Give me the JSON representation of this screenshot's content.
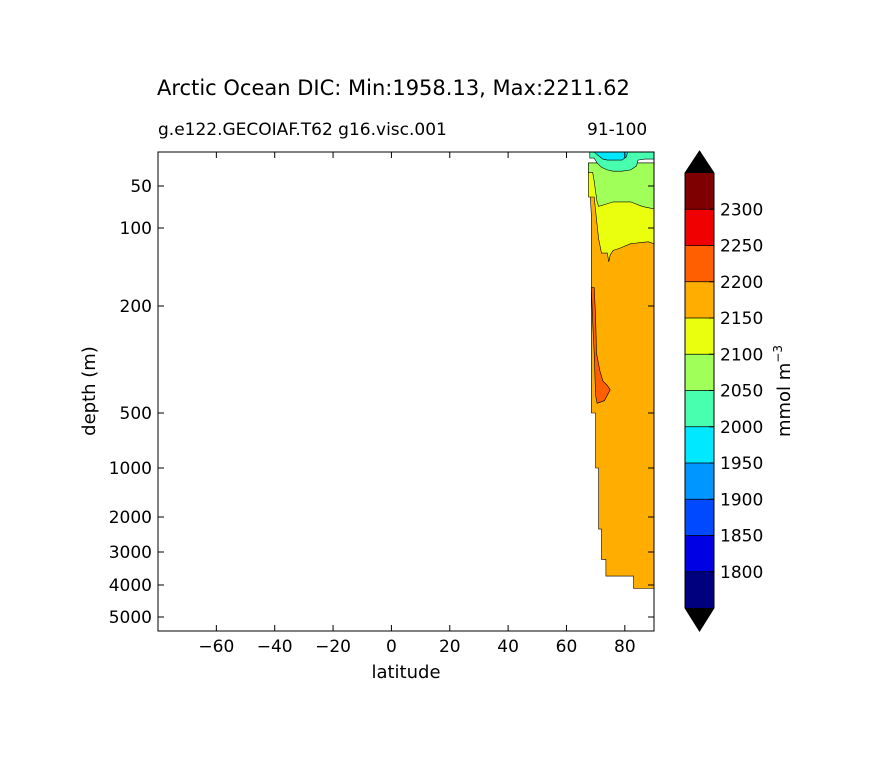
{
  "chart_data": {
    "type": "contour",
    "title": "Arctic Ocean DIC: Min:1958.13, Max:2211.62",
    "subtitle_left": "g.e122.GECOIAF.T62 g16.visc.001",
    "subtitle_right": "91-100",
    "xlabel": "latitude",
    "ylabel": "depth (m)",
    "xlim": [
      -80,
      90
    ],
    "ylim": [
      5500,
      20
    ],
    "x_ticks": [
      -60,
      -40,
      -20,
      0,
      20,
      40,
      60,
      80
    ],
    "x_tick_labels": [
      "−60",
      "−40",
      "−20",
      "0",
      "20",
      "40",
      "60",
      "80"
    ],
    "y_ticks": [
      50,
      100,
      200,
      500,
      1000,
      2000,
      3000,
      4000,
      5000
    ],
    "y_tick_labels": [
      "50",
      "100",
      "200",
      "500",
      "1000",
      "2000",
      "3000",
      "4000",
      "5000"
    ],
    "colorbar": {
      "label": "mmol m",
      "label_superscript": "−3",
      "levels": [
        1750,
        1800,
        1850,
        1900,
        1950,
        2000,
        2050,
        2100,
        2150,
        2200,
        2250,
        2300,
        2350
      ],
      "tick_values": [
        1800,
        1850,
        1900,
        1950,
        2000,
        2050,
        2100,
        2150,
        2200,
        2250,
        2300
      ],
      "tick_labels": [
        "1800",
        "1850",
        "1900",
        "1950",
        "2000",
        "2050",
        "2100",
        "2150",
        "2200",
        "2250",
        "2300"
      ],
      "colors": [
        "#00007f",
        "#0000e5",
        "#0049ff",
        "#0096ff",
        "#00e8ff",
        "#48ffb0",
        "#a0ff58",
        "#eaff0d",
        "#ffae00",
        "#ff5f00",
        "#f00000",
        "#7f0000"
      ],
      "extend_colors": [
        "#000000",
        "#000000"
      ]
    },
    "regions": [
      {
        "name": "orange-2150-2200",
        "color": "#ffae00",
        "points": [
          [
            67.5,
            30
          ],
          [
            90,
            30
          ],
          [
            90,
            4100
          ],
          [
            83,
            4100
          ],
          [
            83,
            3700
          ],
          [
            73.5,
            3700
          ],
          [
            73.5,
            3200
          ],
          [
            72,
            3200
          ],
          [
            72,
            2300
          ],
          [
            71,
            2300
          ],
          [
            71,
            1000
          ],
          [
            70,
            1000
          ],
          [
            70,
            500
          ],
          [
            68.5,
            500
          ],
          [
            68.5,
            80
          ]
        ]
      },
      {
        "name": "red-orange-2200-2250",
        "color": "#ff5f00",
        "points": [
          [
            68.5,
            170
          ],
          [
            69.5,
            170
          ],
          [
            70,
            220
          ],
          [
            70.3,
            300
          ],
          [
            71.5,
            350
          ],
          [
            72.5,
            380
          ],
          [
            74,
            395
          ],
          [
            75,
            410
          ],
          [
            73,
            450
          ],
          [
            70.5,
            460
          ],
          [
            70,
            430
          ],
          [
            69.5,
            300
          ],
          [
            69,
            230
          ]
        ]
      },
      {
        "name": "yellow-2100-2150",
        "color": "#eaff0d",
        "points": [
          [
            67.5,
            30
          ],
          [
            90,
            30
          ],
          [
            90,
            115
          ],
          [
            88,
            113
          ],
          [
            82,
            115
          ],
          [
            78,
            120
          ],
          [
            76,
            122
          ],
          [
            75,
            127
          ],
          [
            74.5,
            135
          ],
          [
            74,
            125
          ],
          [
            72,
            125
          ],
          [
            71,
            110
          ],
          [
            70.5,
            95
          ],
          [
            70,
            75
          ],
          [
            69.5,
            60
          ],
          [
            67.5,
            60
          ]
        ]
      },
      {
        "name": "green-2050-2100",
        "color": "#a0ff58",
        "points": [
          [
            67.5,
            30
          ],
          [
            90,
            30
          ],
          [
            90,
            73
          ],
          [
            86,
            70
          ],
          [
            82,
            65
          ],
          [
            76,
            65
          ],
          [
            73,
            68
          ],
          [
            71,
            70
          ],
          [
            70.5,
            65
          ],
          [
            70,
            55
          ],
          [
            69.5,
            45
          ],
          [
            69,
            37
          ],
          [
            67.5,
            37
          ]
        ]
      },
      {
        "name": "aqua-2000-2050",
        "color": "#48ffb0",
        "points": [
          [
            68,
            20
          ],
          [
            90,
            20
          ],
          [
            90,
            26
          ],
          [
            87,
            26
          ],
          [
            84.5,
            27
          ],
          [
            84,
            32
          ],
          [
            82,
            35
          ],
          [
            79,
            36
          ],
          [
            76,
            36
          ],
          [
            74,
            35
          ],
          [
            72,
            33
          ],
          [
            70.5,
            30
          ],
          [
            69.5,
            25
          ],
          [
            68,
            25
          ]
        ]
      },
      {
        "name": "cyan-1950-2000",
        "color": "#00e8ff",
        "points": [
          [
            69.5,
            20
          ],
          [
            81,
            20
          ],
          [
            80.5,
            24
          ],
          [
            79,
            27
          ],
          [
            76,
            27
          ],
          [
            74,
            27
          ],
          [
            72.5,
            26
          ],
          [
            71,
            23
          ],
          [
            70,
            21
          ]
        ]
      }
    ]
  }
}
